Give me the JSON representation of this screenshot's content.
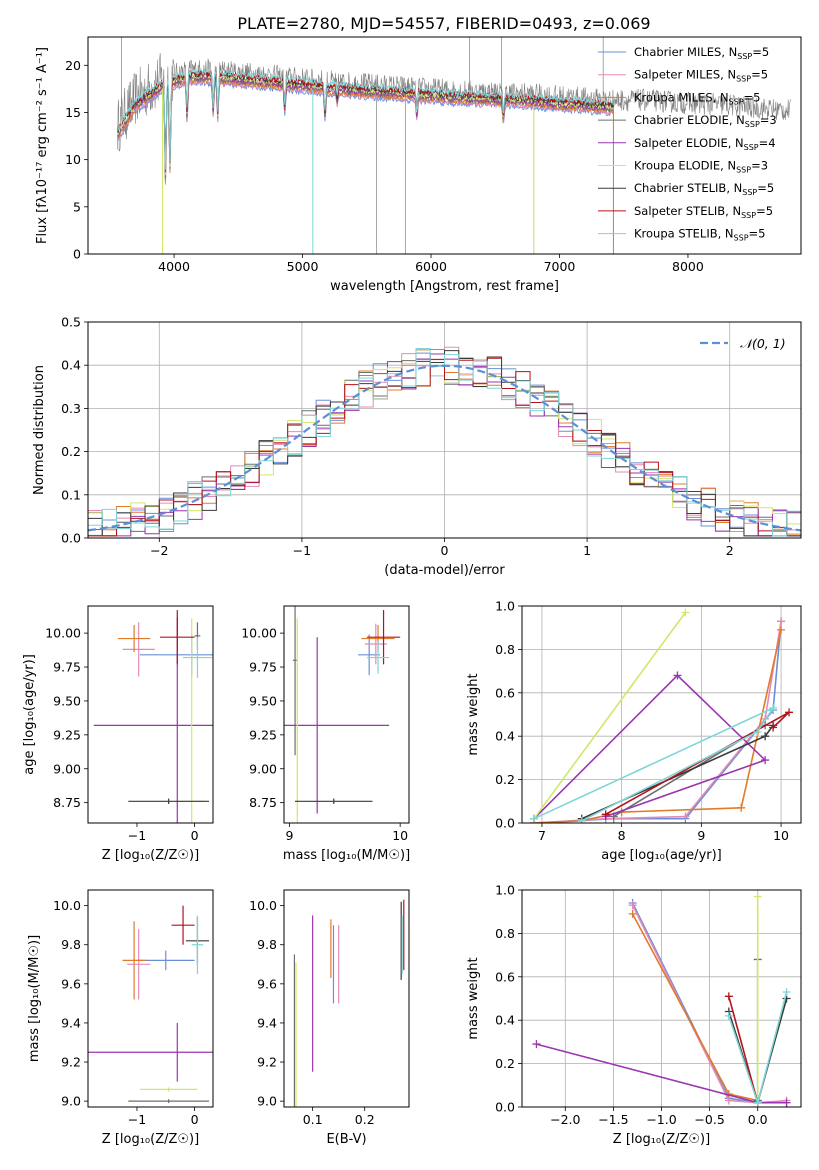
{
  "title": "PLATE=2780, MJD=54557, FIBERID=0493, z=0.069",
  "colors": {
    "chab_miles": "#6a8fd8",
    "salp_miles": "#e58ab8",
    "krou_miles": "#e07b2a",
    "chab_elodie": "#6e6e6e",
    "salp_elodie": "#9b35b0",
    "krou_elodie": "#cfe86a",
    "chab_stelib": "#3a3a3a",
    "salp_stelib": "#b5121b",
    "krou_stelib": "#7fd5d8",
    "data_grey": "#808080",
    "normal_curve": "#5b8fd6"
  },
  "legend": [
    {
      "key": "chab_miles",
      "text": "Chabrier MILES, N",
      "sub": "SSP",
      "post": "=5"
    },
    {
      "key": "salp_miles",
      "text": "Salpeter MILES, N",
      "sub": "SSP",
      "post": "=5"
    },
    {
      "key": "krou_miles",
      "text": "Kroupa MILES, N",
      "sub": "SSP",
      "post": "=5"
    },
    {
      "key": "chab_elodie",
      "text": "Chabrier ELODIE, N",
      "sub": "SSP",
      "post": "=3"
    },
    {
      "key": "salp_elodie",
      "text": "Salpeter ELODIE, N",
      "sub": "SSP",
      "post": "=4"
    },
    {
      "key": "krou_elodie",
      "text": "Kroupa ELODIE, N",
      "sub": "SSP",
      "post": "=3"
    },
    {
      "key": "chab_stelib",
      "text": "Chabrier STELIB, N",
      "sub": "SSP",
      "post": "=5"
    },
    {
      "key": "salp_stelib",
      "text": "Salpeter STELIB, N",
      "sub": "SSP",
      "post": "=5"
    },
    {
      "key": "krou_stelib",
      "text": "Kroupa STELIB, N",
      "sub": "SSP",
      "post": "=5"
    }
  ],
  "chart_data": [
    {
      "id": "spectrum",
      "type": "line",
      "xlabel": "wavelength [Angstrom, rest frame]",
      "ylabel": "Flux [fλ10⁻¹⁷ erg cm⁻² s⁻¹ A⁻¹]",
      "xlim": [
        3330,
        8880
      ],
      "ylim": [
        0,
        23
      ],
      "xticks": [
        4000,
        5000,
        6000,
        7000,
        8000
      ],
      "yticks": [
        0,
        5,
        10,
        15,
        20
      ],
      "data_envelope": [
        [
          3560,
          13.5
        ],
        [
          3700,
          16.5
        ],
        [
          3900,
          18.5
        ],
        [
          4100,
          19.5
        ],
        [
          4300,
          19.5
        ],
        [
          4700,
          19.0
        ],
        [
          5200,
          18.3
        ],
        [
          5700,
          17.8
        ],
        [
          6200,
          17.3
        ],
        [
          6700,
          17.0
        ],
        [
          7000,
          16.7
        ],
        [
          7400,
          16.3
        ],
        [
          7700,
          16.3
        ],
        [
          8000,
          16.0
        ],
        [
          8300,
          15.8
        ],
        [
          8600,
          15.4
        ],
        [
          8800,
          15.2
        ]
      ],
      "absorption_lines": [
        [
          3933,
          8
        ],
        [
          3968,
          9
        ],
        [
          4101,
          15
        ],
        [
          4304,
          15.5
        ],
        [
          4340,
          15
        ],
        [
          4861,
          16
        ],
        [
          5175,
          15.2
        ],
        [
          5270,
          17
        ],
        [
          5890,
          15.2
        ],
        [
          6563,
          14.8
        ]
      ],
      "model_xrange": [
        3560,
        7420
      ],
      "legend_location": "upper right",
      "series_ref": "legend"
    },
    {
      "id": "residual_hist",
      "type": "histogram",
      "xlabel": "(data-model)/error",
      "ylabel": "Normed distribution",
      "xlim": [
        -2.5,
        2.5
      ],
      "ylim": [
        0,
        0.5
      ],
      "xticks": [
        -2,
        -1,
        0,
        1,
        2
      ],
      "yticks": [
        0.0,
        0.1,
        0.2,
        0.3,
        0.4,
        0.5
      ],
      "grid": true,
      "bin_width": 0.1,
      "reference_curve": {
        "label": "𝒩(0, 1)",
        "mean": 0,
        "sigma": 1,
        "style": "dashed"
      },
      "legend_location": "upper right"
    },
    {
      "id": "age_vs_Z",
      "type": "errorbar",
      "xlabel": "Z [log₁₀(Z/Z☉)]",
      "ylabel": "age  [log₁₀(age/yr)]",
      "xlim": [
        -1.85,
        0.32
      ],
      "ylim": [
        8.6,
        10.2
      ],
      "xticks": [
        -1,
        0
      ],
      "yticks": [
        8.75,
        9.0,
        9.25,
        9.5,
        9.75,
        10.0
      ],
      "points": [
        {
          "key": "chab_miles",
          "x": -0.05,
          "xerr": 0.9,
          "y": 9.84,
          "yerr": 0.15
        },
        {
          "key": "salp_miles",
          "x": -0.97,
          "xerr": 0.28,
          "y": 9.88,
          "yerr": 0.2
        },
        {
          "key": "krou_miles",
          "x": -1.05,
          "xerr": 0.28,
          "y": 9.96,
          "yerr": 0.1
        },
        {
          "key": "chab_elodie",
          "x": 0.05,
          "xerr": 0.05,
          "y": 9.98,
          "yerr": 0.1
        },
        {
          "key": "salp_elodie",
          "x": -0.3,
          "xerr": 1.45,
          "y": 9.32,
          "yerr": 0.8
        },
        {
          "key": "krou_elodie",
          "x": -0.05,
          "xerr": 0.22,
          "y": 8.76,
          "yerr": 1.35
        },
        {
          "key": "chab_stelib",
          "x": -0.45,
          "xerr": 0.7,
          "y": 8.76,
          "yerr": 0.02
        },
        {
          "key": "salp_stelib",
          "x": -0.3,
          "xerr": 0.3,
          "y": 9.97,
          "yerr": 0.2
        },
        {
          "key": "krou_stelib",
          "x": 0.05,
          "xerr": 0.25,
          "y": 9.82,
          "yerr": 0.15
        }
      ]
    },
    {
      "id": "age_vs_mass",
      "type": "errorbar",
      "xlabel": "mass [log₁₀(M/M☉)]",
      "ylabel": "",
      "xlim": [
        8.95,
        10.08
      ],
      "ylim": [
        8.6,
        10.2
      ],
      "xticks": [
        9,
        10
      ],
      "yticks": [
        8.75,
        9.0,
        9.25,
        9.5,
        9.75,
        10.0
      ],
      "points": [
        {
          "key": "chab_miles",
          "x": 9.72,
          "xerr": 0.1,
          "y": 9.84,
          "yerr": 0.15
        },
        {
          "key": "salp_miles",
          "x": 9.78,
          "xerr": 0.1,
          "y": 9.92,
          "yerr": 0.15
        },
        {
          "key": "krou_miles",
          "x": 9.8,
          "xerr": 0.15,
          "y": 9.96,
          "yerr": 0.1
        },
        {
          "key": "chab_elodie",
          "x": 9.05,
          "xerr": 0.02,
          "y": 9.8,
          "yerr": 0.7
        },
        {
          "key": "salp_elodie",
          "x": 9.25,
          "xerr": 0.65,
          "y": 9.32,
          "yerr": 0.65
        },
        {
          "key": "krou_elodie",
          "x": 9.07,
          "xerr": 0.02,
          "y": 8.76,
          "yerr": 1.35
        },
        {
          "key": "chab_stelib",
          "x": 9.4,
          "xerr": 0.35,
          "y": 8.76,
          "yerr": 0.02
        },
        {
          "key": "salp_stelib",
          "x": 9.85,
          "xerr": 0.15,
          "y": 9.97,
          "yerr": 0.2
        },
        {
          "key": "krou_stelib",
          "x": 9.8,
          "xerr": 0.1,
          "y": 9.82,
          "yerr": 0.12
        }
      ]
    },
    {
      "id": "weight_vs_age",
      "type": "line",
      "xlabel": "age  [log₁₀(age/yr)]",
      "ylabel": "mass weight",
      "xlim": [
        6.75,
        10.25
      ],
      "ylim": [
        0,
        1
      ],
      "xticks": [
        7,
        8,
        9,
        10
      ],
      "yticks": [
        0.0,
        0.2,
        0.4,
        0.6,
        0.8,
        1.0
      ],
      "grid": true,
      "series": [
        {
          "key": "chab_miles",
          "x": [
            6.9,
            7.9,
            8.8,
            9.9,
            10.0
          ],
          "y": [
            0.0,
            0.02,
            0.02,
            0.52,
            0.93
          ]
        },
        {
          "key": "salp_miles",
          "x": [
            6.9,
            7.8,
            8.8,
            9.8,
            10.0
          ],
          "y": [
            0.0,
            0.02,
            0.03,
            0.48,
            0.93
          ]
        },
        {
          "key": "krou_miles",
          "x": [
            6.9,
            7.5,
            8.0,
            9.5,
            10.0
          ],
          "y": [
            0.0,
            0.01,
            0.05,
            0.07,
            0.89
          ]
        },
        {
          "key": "chab_elodie",
          "x": [
            7.9,
            9.8
          ],
          "y": [
            0.03,
            0.45
          ]
        },
        {
          "key": "salp_elodie",
          "x": [
            6.9,
            8.7,
            9.8,
            7.8
          ],
          "y": [
            0.02,
            0.68,
            0.29,
            0.03
          ]
        },
        {
          "key": "krou_elodie",
          "x": [
            6.9,
            8.8
          ],
          "y": [
            0.02,
            0.97
          ]
        },
        {
          "key": "chab_stelib",
          "x": [
            7.5,
            9.8,
            9.9
          ],
          "y": [
            0.02,
            0.4,
            0.45
          ]
        },
        {
          "key": "salp_stelib",
          "x": [
            7.8,
            10.1,
            9.9
          ],
          "y": [
            0.04,
            0.51,
            0.44
          ]
        },
        {
          "key": "krou_stelib",
          "x": [
            7.5,
            9.7,
            9.9,
            6.9
          ],
          "y": [
            0.01,
            0.42,
            0.53,
            0.02
          ]
        }
      ]
    },
    {
      "id": "mass_vs_Z",
      "type": "errorbar",
      "xlabel": "Z [log₁₀(Z/Z☉)]",
      "ylabel": "mass [log₁₀(M/M☉)]",
      "xlim": [
        -1.85,
        0.32
      ],
      "ylim": [
        8.97,
        10.08
      ],
      "xticks": [
        -1,
        0
      ],
      "yticks": [
        9.0,
        9.2,
        9.4,
        9.6,
        9.8,
        10.0
      ],
      "points": [
        {
          "key": "chab_miles",
          "x": -0.5,
          "xerr": 0.5,
          "y": 9.72,
          "yerr": 0.05
        },
        {
          "key": "salp_miles",
          "x": -0.97,
          "xerr": 0.2,
          "y": 9.7,
          "yerr": 0.18
        },
        {
          "key": "krou_miles",
          "x": -1.05,
          "xerr": 0.2,
          "y": 9.72,
          "yerr": 0.2
        },
        {
          "key": "chab_elodie",
          "x": -0.45,
          "xerr": 0.7,
          "y": 9.0,
          "yerr": 0.01
        },
        {
          "key": "salp_elodie",
          "x": -0.3,
          "xerr": 1.6,
          "y": 9.25,
          "yerr": 0.15
        },
        {
          "key": "krou_elodie",
          "x": -0.45,
          "xerr": 0.5,
          "y": 9.06,
          "yerr": 0.01
        },
        {
          "key": "chab_stelib",
          "x": 0.05,
          "xerr": 0.2,
          "y": 9.82,
          "yerr": 0.12
        },
        {
          "key": "salp_stelib",
          "x": -0.2,
          "xerr": 0.2,
          "y": 9.9,
          "yerr": 0.1
        },
        {
          "key": "krou_stelib",
          "x": 0.05,
          "xerr": 0.1,
          "y": 9.8,
          "yerr": 0.15
        }
      ]
    },
    {
      "id": "mass_vs_ebv",
      "type": "errorbar",
      "xlabel": "E(B-V)",
      "ylabel": "",
      "xlim": [
        0.045,
        0.285
      ],
      "ylim": [
        8.97,
        10.08
      ],
      "xticks": [
        0.1,
        0.2
      ],
      "yticks": [
        9.0,
        9.2,
        9.4,
        9.6,
        9.8,
        10.0
      ],
      "points": [
        {
          "key": "chab_miles",
          "x": 0.14,
          "yerr": 0.2,
          "y": 9.7
        },
        {
          "key": "salp_miles",
          "x": 0.15,
          "yerr": 0.2,
          "y": 9.7
        },
        {
          "key": "krou_miles",
          "x": 0.135,
          "yerr": 0.15,
          "y": 9.78
        },
        {
          "key": "chab_elodie",
          "x": 0.065,
          "yerr": 0.7,
          "y": 9.05
        },
        {
          "key": "salp_elodie",
          "x": 0.1,
          "yerr": 0.4,
          "y": 9.55
        },
        {
          "key": "krou_elodie",
          "x": 0.068,
          "yerr": 0.65,
          "y": 9.06
        },
        {
          "key": "chab_stelib",
          "x": 0.27,
          "yerr": 0.2,
          "y": 9.82
        },
        {
          "key": "salp_stelib",
          "x": 0.275,
          "yerr": 0.18,
          "y": 9.85
        },
        {
          "key": "krou_stelib",
          "x": 0.272,
          "yerr": 0.15,
          "y": 9.8
        }
      ]
    },
    {
      "id": "weight_vs_Z",
      "type": "line",
      "xlabel": "Z [log₁₀(Z/Z☉)]",
      "ylabel": "mass weight",
      "xlim": [
        -2.45,
        0.45
      ],
      "ylim": [
        0,
        1
      ],
      "xticks": [
        -2.0,
        -1.5,
        -1.0,
        -0.5,
        0.0
      ],
      "yticks": [
        0.0,
        0.2,
        0.4,
        0.6,
        0.8,
        1.0
      ],
      "grid": true,
      "series": [
        {
          "key": "chab_miles",
          "x": [
            -1.3,
            -0.3,
            0.0,
            0.3
          ],
          "y": [
            0.94,
            0.04,
            0.02,
            0.02
          ]
        },
        {
          "key": "salp_miles",
          "x": [
            -1.3,
            -0.3,
            0.0,
            0.3
          ],
          "y": [
            0.93,
            0.03,
            0.02,
            0.03
          ]
        },
        {
          "key": "krou_miles",
          "x": [
            -1.3,
            -0.3,
            0.0
          ],
          "y": [
            0.89,
            0.06,
            0.03
          ]
        },
        {
          "key": "chab_elodie",
          "x": [
            0.0,
            0.0
          ],
          "y": [
            0.68,
            0.03
          ]
        },
        {
          "key": "salp_elodie",
          "x": [
            -2.3,
            0.0,
            0.3
          ],
          "y": [
            0.29,
            0.02,
            0.02
          ]
        },
        {
          "key": "krou_elodie",
          "x": [
            0.0,
            0.0
          ],
          "y": [
            0.97,
            0.02
          ]
        },
        {
          "key": "chab_stelib",
          "x": [
            -0.3,
            0.0,
            0.3
          ],
          "y": [
            0.44,
            0.02,
            0.5
          ]
        },
        {
          "key": "salp_stelib",
          "x": [
            -0.3,
            0.0
          ],
          "y": [
            0.51,
            0.02
          ]
        },
        {
          "key": "krou_stelib",
          "x": [
            -0.3,
            0.0,
            0.3
          ],
          "y": [
            0.42,
            0.02,
            0.53
          ]
        }
      ]
    }
  ]
}
